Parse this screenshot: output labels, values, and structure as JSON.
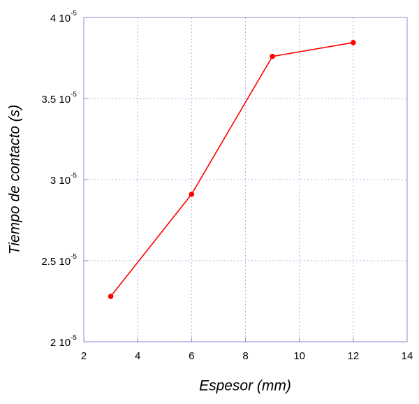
{
  "chart_data": {
    "type": "line",
    "x_label": "Espesor (mm)",
    "y_label": "Tiempo de contacto (s)",
    "x": [
      3,
      6,
      9,
      12
    ],
    "values": [
      2.28e-05,
      2.91e-05,
      3.76e-05,
      3.845e-05
    ],
    "color": "#ff0000",
    "xlim": [
      2,
      14
    ],
    "xticks": [
      2,
      4,
      6,
      8,
      10,
      12,
      14
    ],
    "ylim": [
      2e-05,
      4e-05
    ],
    "yticks": [
      {
        "value": 2e-05,
        "label": "2 10-5"
      },
      {
        "value": 2.5e-05,
        "label": "2.5 10-5"
      },
      {
        "value": 3e-05,
        "label": "3 10-5"
      },
      {
        "value": 3.5e-05,
        "label": "3.5 10-5"
      },
      {
        "value": 4e-05,
        "label": "4 10-5"
      }
    ],
    "grid": true
  }
}
